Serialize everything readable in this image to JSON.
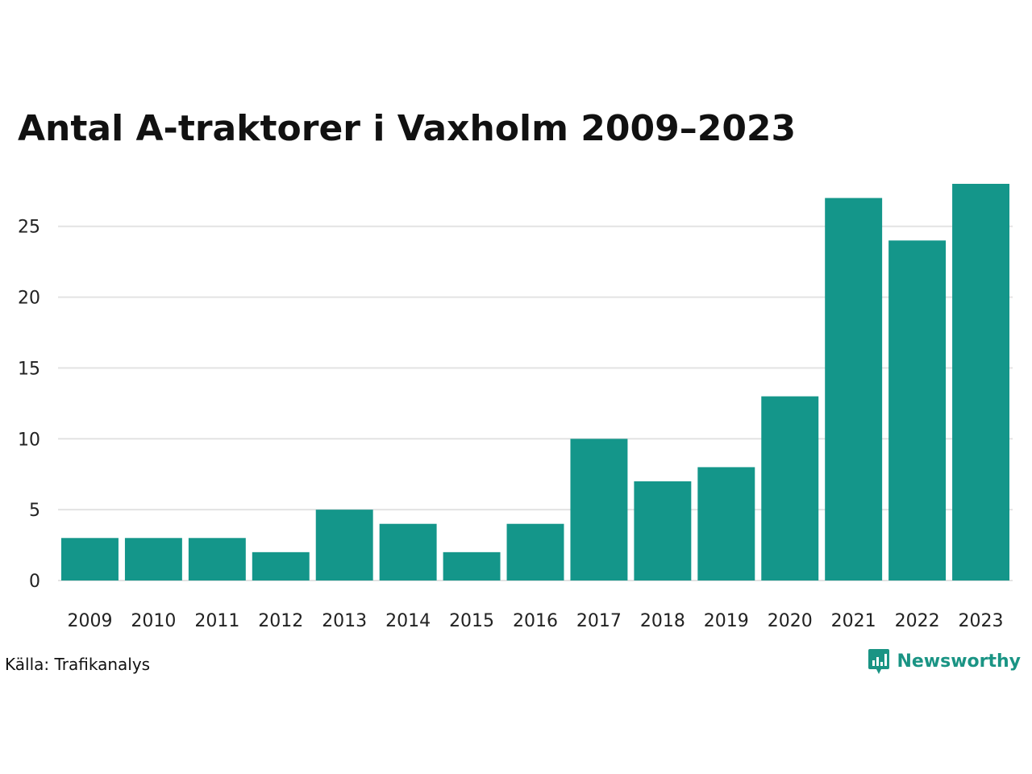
{
  "chart_data": {
    "type": "bar",
    "title": "Antal A-traktorer i Vaxholm 2009–2023",
    "categories": [
      "2009",
      "2010",
      "2011",
      "2012",
      "2013",
      "2014",
      "2015",
      "2016",
      "2017",
      "2018",
      "2019",
      "2020",
      "2021",
      "2022",
      "2023"
    ],
    "values": [
      3,
      3,
      3,
      2,
      5,
      4,
      2,
      4,
      10,
      7,
      8,
      13,
      27,
      24,
      28
    ],
    "yticks": [
      0,
      5,
      10,
      15,
      20,
      25
    ],
    "ylim": [
      0,
      28
    ],
    "grid": true,
    "legend": "none",
    "bar_color": "#14968a",
    "grid_color": "#e3e3e3"
  },
  "footer": {
    "source": "Källa: Trafikanalys",
    "brand": "Newsworthy",
    "brand_color": "#1a9484",
    "brand_icon": "bar-chart-speech-bubble-icon"
  }
}
